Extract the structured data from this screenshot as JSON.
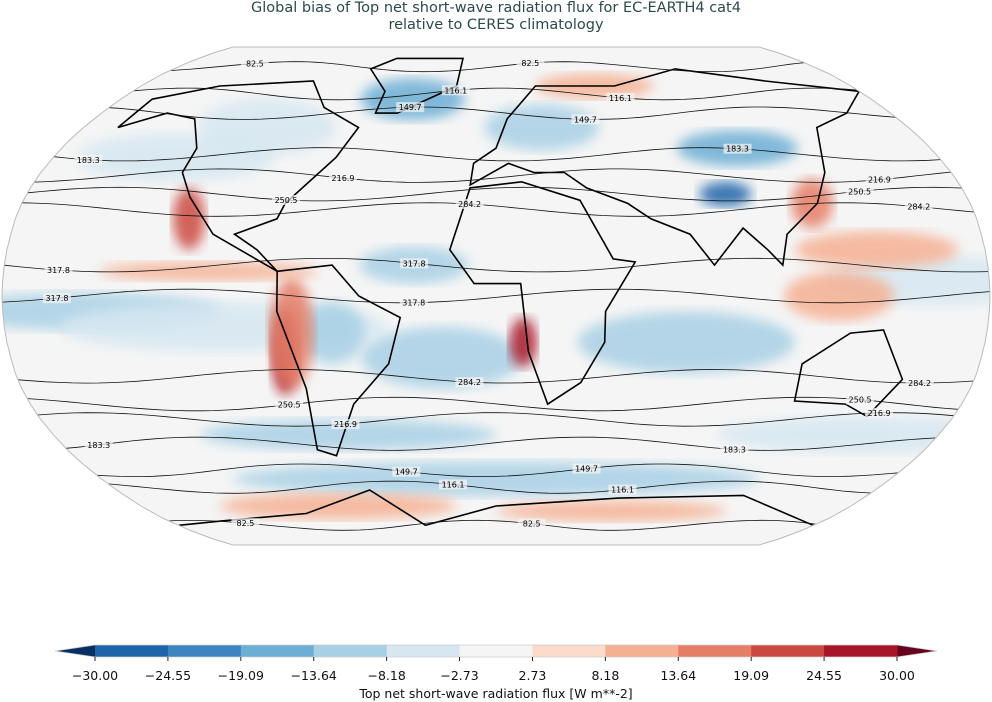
{
  "title_line1": "Global bias of Top net short-wave radiation flux for EC-EARTH4 cat4",
  "title_line2": "relative to CERES climatology",
  "map": {
    "projection": "Robinson",
    "contour_levels": [
      "82.5",
      "116.1",
      "149.7",
      "183.3",
      "216.9",
      "250.5",
      "284.2",
      "317.8"
    ]
  },
  "colorbar": {
    "ticks": [
      "−30.00",
      "−24.55",
      "−19.09",
      "−13.64",
      "−8.18",
      "−2.73",
      "2.73",
      "8.18",
      "13.64",
      "19.09",
      "24.55",
      "30.00"
    ],
    "colors": [
      "#1f63a8",
      "#3d85c0",
      "#6caed4",
      "#a8d0e5",
      "#d6e7f1",
      "#f5f5f5",
      "#fbdccb",
      "#f5b093",
      "#e57e66",
      "#cb4840",
      "#a81528"
    ],
    "under_color": "#053061",
    "over_color": "#67001f",
    "label": "Top net short-wave radiation flux [W m**-2]"
  }
}
